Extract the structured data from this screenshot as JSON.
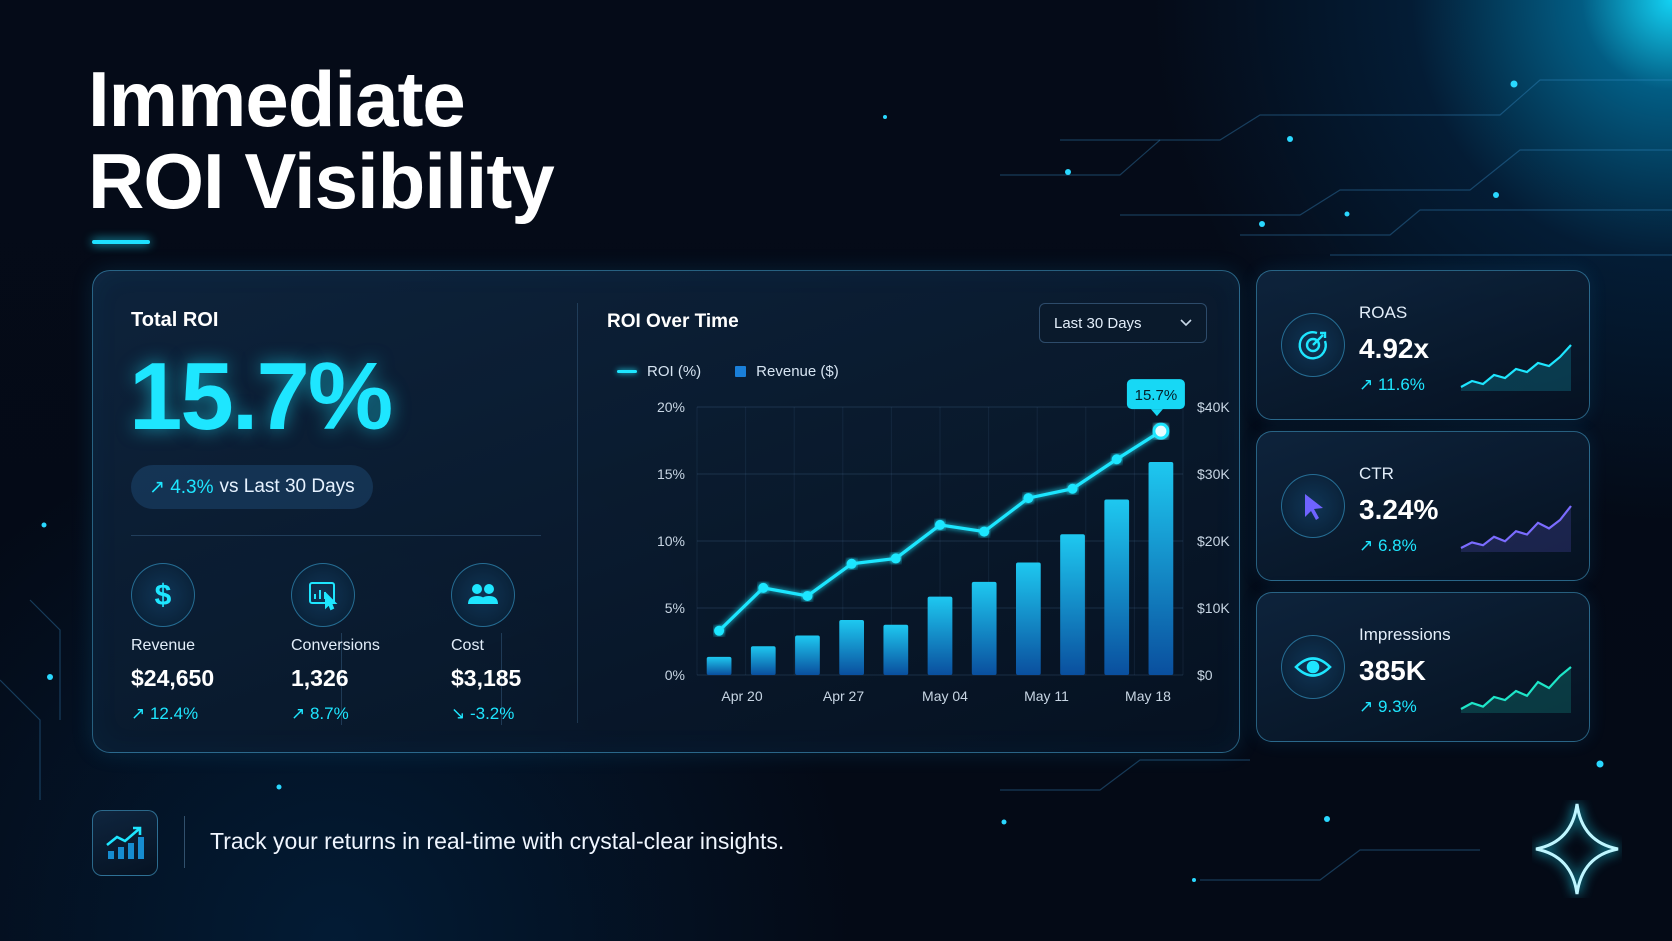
{
  "page": {
    "title_line1": "Immediate",
    "title_line2": "ROI Visibility",
    "footer_text": "Track your returns in real-time with crystal-clear insights."
  },
  "total_roi": {
    "label": "Total ROI",
    "value": "15.7%",
    "change": "↗ 4.3%",
    "change_context": "vs Last 30 Days"
  },
  "metrics": [
    {
      "label": "Revenue",
      "value": "$24,650",
      "change": "↗ 12.4%",
      "icon": "dollar-icon"
    },
    {
      "label": "Conversions",
      "value": "1,326",
      "change": "↗ 8.7%",
      "icon": "conversion-chart-icon"
    },
    {
      "label": "Cost",
      "value": "$3,185",
      "change": "↘ -3.2%",
      "icon": "users-icon"
    }
  ],
  "chart": {
    "title": "ROI Over Time",
    "range_selected": "Last 30 Days",
    "legend_roi": "ROI (%)",
    "legend_revenue": "Revenue ($)"
  },
  "chart_data": {
    "type": "bar",
    "x_tick_labels": [
      "Apr 20",
      "Apr 27",
      "May 04",
      "May 11",
      "May 18"
    ],
    "y_left_ticks": [
      "0%",
      "5%",
      "10%",
      "15%",
      "20%"
    ],
    "y_right_ticks": [
      "$0",
      "$10K",
      "$20K",
      "$30K",
      "$40K"
    ],
    "y_left_range": [
      0,
      20
    ],
    "y_right_range": [
      0,
      40000
    ],
    "series": [
      {
        "name": "Revenue ($)",
        "type": "bar",
        "axis": "right",
        "values": [
          2700,
          4300,
          5900,
          8200,
          7500,
          11700,
          13900,
          16800,
          21000,
          26200,
          31800
        ]
      },
      {
        "name": "ROI (%)",
        "type": "line",
        "axis": "left",
        "values": [
          3.3,
          6.5,
          5.9,
          8.3,
          8.7,
          11.2,
          10.7,
          13.2,
          13.9,
          16.1,
          18.2
        ]
      }
    ],
    "callout": "15.7%",
    "grid": true,
    "colors": {
      "line": "#1ee6ff",
      "bar_top": "#1ec8f0",
      "bar_bottom": "#0a4f9e"
    }
  },
  "side_cards": [
    {
      "label": "ROAS",
      "value": "4.92x",
      "change": "↗ 11.6%",
      "icon": "target-icon",
      "color": "#1ee6ff",
      "trend": [
        2,
        3,
        2.5,
        4,
        3.5,
        5,
        4.5,
        6,
        5.5,
        7,
        9
      ]
    },
    {
      "label": "CTR",
      "value": "3.24%",
      "change": "↗ 6.8%",
      "icon": "cursor-icon",
      "color": "#7b6cff",
      "trend": [
        2,
        3,
        2.5,
        4,
        3.2,
        5,
        4.4,
        6.5,
        5.5,
        7,
        9.5
      ]
    },
    {
      "label": "Impressions",
      "value": "385K",
      "change": "↗ 9.3%",
      "icon": "eye-icon",
      "color": "#1ee6c8",
      "trend": [
        2,
        3,
        2.4,
        4,
        3.5,
        5,
        4.2,
        6.5,
        5.5,
        7.5,
        9
      ]
    }
  ]
}
